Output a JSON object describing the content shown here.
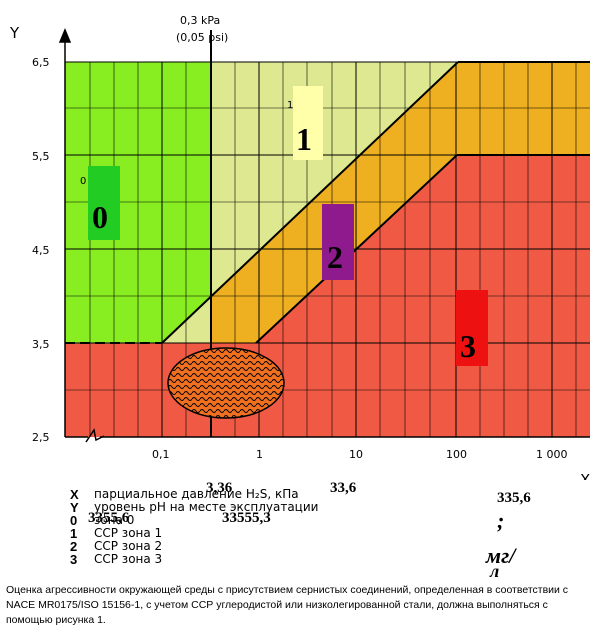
{
  "axes": {
    "y_label": "Y",
    "x_label": "X",
    "y_ticks": [
      "6,5",
      "5,5",
      "4,5",
      "3,5",
      "2,5"
    ],
    "x_ticks": [
      "0,1",
      "1",
      "10",
      "100",
      "1 000"
    ],
    "top_note_line1": "0,3 kPa",
    "top_note_line2": "(0,05 psi)"
  },
  "zones": {
    "zone0": {
      "label": "0",
      "small": "0",
      "color": "#88ee22"
    },
    "zone1": {
      "label": "1",
      "small": "1",
      "color": "#dde890"
    },
    "zone2": {
      "label": "2",
      "color": "#eeb020"
    },
    "zone3": {
      "label": "3",
      "color": "#f05a45"
    }
  },
  "markers": {
    "label0_bg": "#22cc22",
    "label1_bg": "#ffffaa",
    "label2_bg": "#8e1a8e",
    "label3_bg": "#ee1111"
  },
  "legend": [
    {
      "sym": "X",
      "text": "парциальное давление H₂S, кПа"
    },
    {
      "sym": "Y",
      "text": "уровень pH на месте эксплуатации"
    },
    {
      "sym": "0",
      "text": "зона 0"
    },
    {
      "sym": "1",
      "text": "ССР зона 1"
    },
    {
      "sym": "2",
      "text": "ССР зона 2"
    },
    {
      "sym": "3",
      "text": "ССР зона 3"
    }
  ],
  "overlay_numbers": {
    "a": "3,36",
    "b": "33,6",
    "c": "335,6",
    "d": "3355,6",
    "e": "33555,3",
    "semicolon": ";",
    "mg": "мг/",
    "l": "л"
  },
  "caption": "Оценка агрессивности окружающей среды с присутствием сернистых соединений, определенная в соответствии с NACE MR0175/ISO 15156-1, с учетом ССР углеродистой или низколегированной стали, должна выполняться с помощью рисунка 1."
}
